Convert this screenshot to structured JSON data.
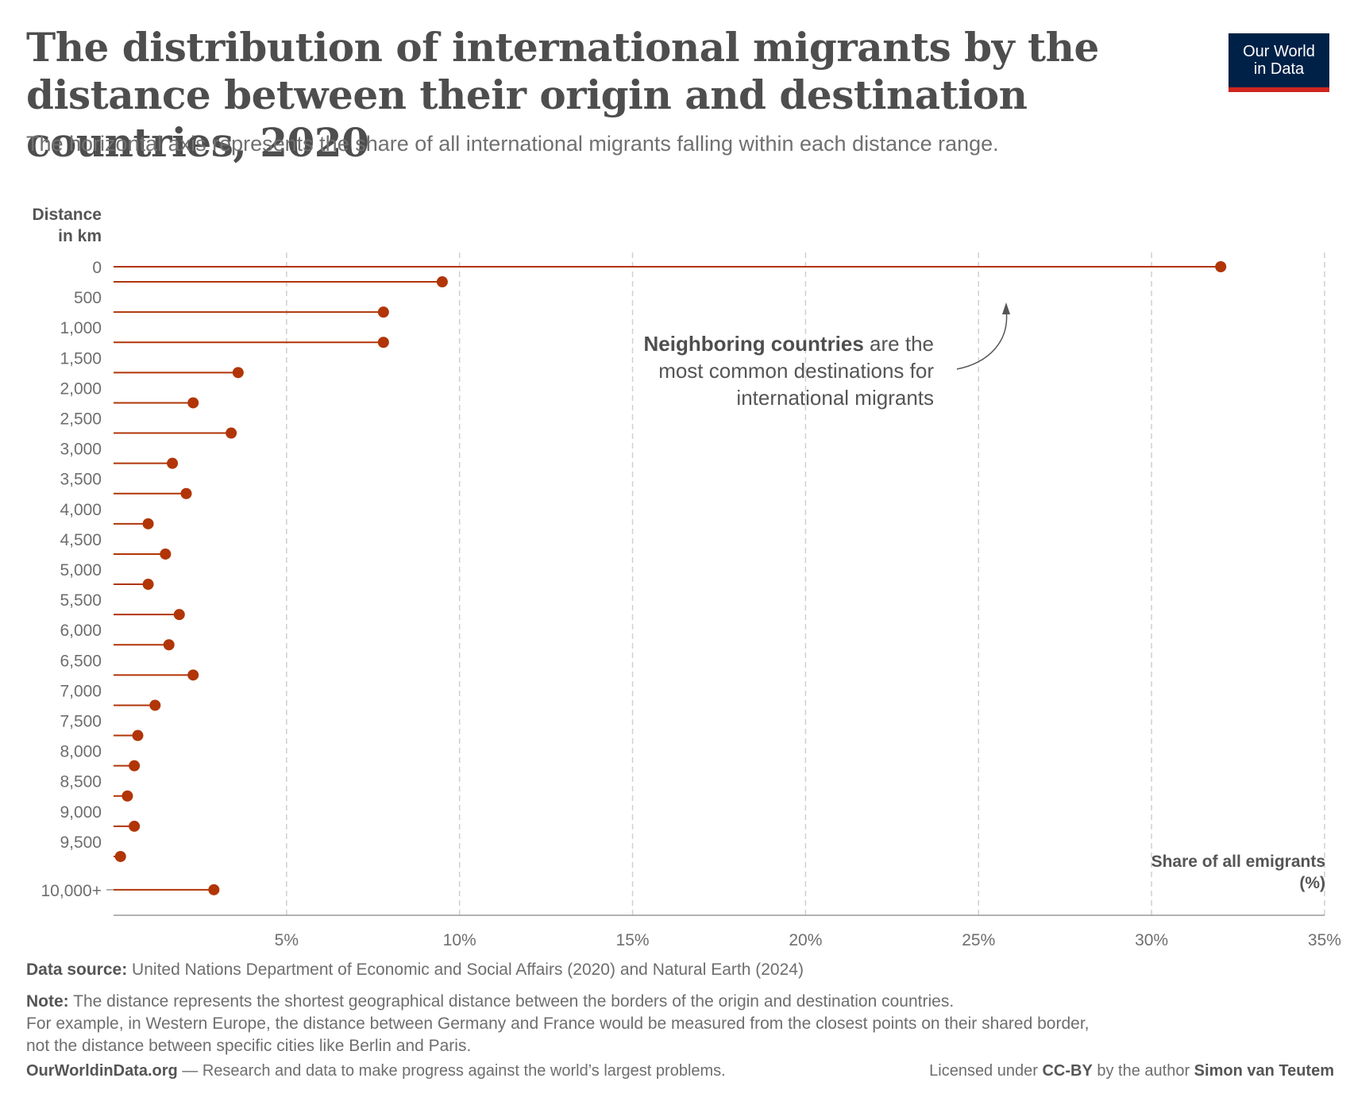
{
  "header": {
    "title": "The distribution of international migrants by the distance between their origin and destination countries, 2020",
    "subtitle": "The horizontal axis represents the share of all international migrants falling within each distance range.",
    "logo_line1": "Our World",
    "logo_line2": "in Data"
  },
  "chart_data": {
    "type": "lollipop",
    "y_axis_title_line1": "Distance",
    "y_axis_title_line2": "in km",
    "x_axis_title_line1": "Share of all emigrants",
    "x_axis_title_line2": "(%)",
    "xlim": [
      0,
      35
    ],
    "x_ticks": [
      "5%",
      "10%",
      "15%",
      "20%",
      "25%",
      "30%",
      "35%"
    ],
    "x_tick_values": [
      5,
      10,
      15,
      20,
      25,
      30,
      35
    ],
    "y_tick_labels": [
      "0",
      "500",
      "1,000",
      "1,500",
      "2,000",
      "2,500",
      "3,000",
      "3,500",
      "4,000",
      "4,500",
      "5,000",
      "5,500",
      "6,000",
      "6,500",
      "7,000",
      "7,500",
      "8,000",
      "8,500",
      "9,000",
      "9,500",
      "10,000+"
    ],
    "y_tick_values": [
      0,
      500,
      1000,
      1500,
      2000,
      2500,
      3000,
      3500,
      4000,
      4500,
      5000,
      5500,
      6000,
      6500,
      7000,
      7500,
      8000,
      8500,
      9000,
      9500,
      10000
    ],
    "points": [
      {
        "distance": 0,
        "value": 32.0
      },
      {
        "distance": 250,
        "value": 9.5
      },
      {
        "distance": 750,
        "value": 7.8
      },
      {
        "distance": 1250,
        "value": 7.8
      },
      {
        "distance": 1750,
        "value": 3.6
      },
      {
        "distance": 2250,
        "value": 2.3
      },
      {
        "distance": 2750,
        "value": 3.4
      },
      {
        "distance": 3250,
        "value": 1.7
      },
      {
        "distance": 3750,
        "value": 2.1
      },
      {
        "distance": 4250,
        "value": 1.0
      },
      {
        "distance": 4750,
        "value": 1.5
      },
      {
        "distance": 5250,
        "value": 1.0
      },
      {
        "distance": 5750,
        "value": 1.9
      },
      {
        "distance": 6250,
        "value": 1.6
      },
      {
        "distance": 6750,
        "value": 2.3
      },
      {
        "distance": 7250,
        "value": 1.2
      },
      {
        "distance": 7750,
        "value": 0.7
      },
      {
        "distance": 8250,
        "value": 0.6
      },
      {
        "distance": 8750,
        "value": 0.4
      },
      {
        "distance": 9250,
        "value": 0.6
      },
      {
        "distance": 9750,
        "value": 0.2
      },
      {
        "distance": 10000,
        "value": 2.9
      }
    ],
    "annotation": {
      "bold": "Neighboring countries",
      "line1_rest": " are the",
      "line2": "most common destinations for",
      "line3": "international migrants"
    },
    "color": "#b13507"
  },
  "footer": {
    "source_label": "Data source:",
    "source_text": " United Nations Department of Economic and Social Affairs (2020) and Natural Earth (2024)",
    "note_label": "Note:",
    "note_line1": " The distance represents the shortest geographical distance between the borders of the origin and destination countries.",
    "note_line2": "For example, in Western Europe, the distance between Germany and France would be measured from the closest points on their shared border,",
    "note_line3": "not the distance between specific cities like Berlin and Paris.",
    "site": "OurWorldinData.org",
    "tagline": " — Research and data to make progress against the world’s largest problems.",
    "license_prefix": "Licensed under ",
    "license": "CC-BY",
    "author_prefix": " by the author ",
    "author": "Simon van Teutem"
  }
}
